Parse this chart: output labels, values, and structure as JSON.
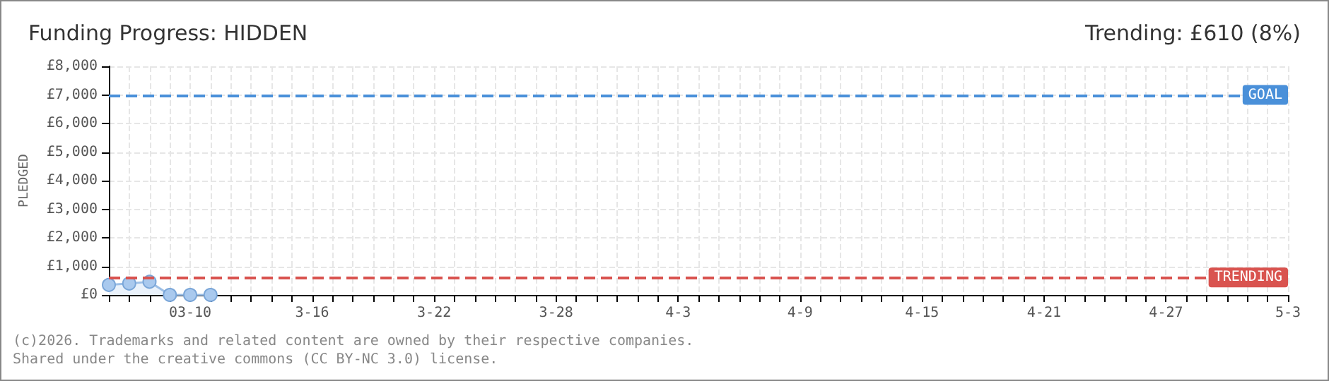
{
  "chart_data": {
    "type": "area",
    "title": "Funding Progress: HIDDEN",
    "subtitle": "Trending: £610 (8%)",
    "ylabel": "PLEDGED",
    "categories": [
      null,
      null,
      null,
      null,
      "03-10",
      null,
      null,
      null,
      null,
      null,
      "3-16",
      null,
      null,
      null,
      null,
      null,
      "3-22",
      null,
      null,
      null,
      null,
      null,
      "3-28",
      null,
      null,
      null,
      null,
      null,
      "4-3",
      null,
      null,
      null,
      null,
      null,
      "4-9",
      null,
      null,
      null,
      null,
      null,
      "4-15",
      null,
      null,
      null,
      null,
      null,
      "4-21",
      null,
      null,
      null,
      null,
      null,
      "4-27",
      null,
      null,
      null,
      null,
      null,
      "5-3"
    ],
    "series": [
      {
        "color": "#a9c9ee",
        "values": [
          350,
          400,
          460,
          0,
          0,
          0,
          null,
          null,
          null,
          null,
          null,
          null,
          null,
          null,
          null,
          null,
          null,
          null,
          null,
          null,
          null,
          null,
          null,
          null,
          null,
          null,
          null,
          null,
          null,
          null,
          null,
          null,
          null,
          null,
          null,
          null,
          null,
          null,
          null,
          null,
          null,
          null,
          null,
          null,
          null,
          null,
          null,
          null,
          null,
          null,
          null,
          null,
          null,
          null,
          null,
          null,
          null,
          null,
          null
        ]
      }
    ],
    "ylim": [
      0,
      8000
    ],
    "yticks": [
      {
        "value": 0,
        "label": "£0"
      },
      {
        "value": 1000,
        "label": "£1,000"
      },
      {
        "value": 2000,
        "label": "£2,000"
      },
      {
        "value": 3000,
        "label": "£3,000"
      },
      {
        "value": 4000,
        "label": "£4,000"
      },
      {
        "value": 5000,
        "label": "£5,000"
      },
      {
        "value": 6000,
        "label": "£6,000"
      },
      {
        "value": 7000,
        "label": "£7,000"
      },
      {
        "value": 8000,
        "label": "£8,000"
      }
    ],
    "ref_lines": [
      {
        "axis": "y",
        "value": 7000,
        "label": "GOAL",
        "color": "#4a90d9",
        "line_style": "dashed"
      },
      {
        "axis": "y",
        "value": 610,
        "label": "TRENDING",
        "color": "#d9534f",
        "line_style": "dashed"
      }
    ],
    "annotations": [
      "(c)2026. Trademarks and related content are owned by their respective companies.",
      "Shared under the creative commons (CC BY-NC 3.0) license."
    ],
    "grid": true,
    "marker": "circle"
  }
}
